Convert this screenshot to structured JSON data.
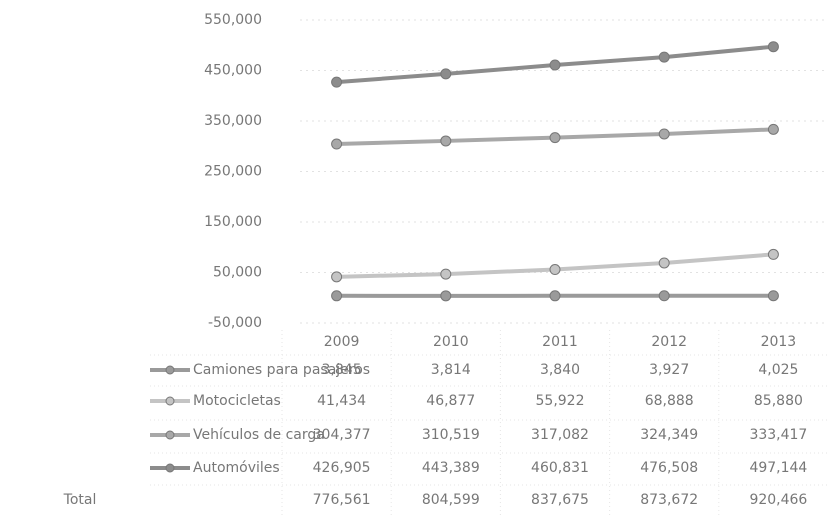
{
  "chart_data": {
    "type": "line",
    "categories": [
      "2009",
      "2010",
      "2011",
      "2012",
      "2013"
    ],
    "series": [
      {
        "name": "Camiones para pasajeros",
        "color": "#9a9a9a",
        "values": [
          3845,
          3814,
          3840,
          3927,
          4025
        ],
        "value_labels": [
          "3,845",
          "3,814",
          "3,840",
          "3,927",
          "4,025"
        ]
      },
      {
        "name": "Motocicletas",
        "color": "#c4c4c4",
        "values": [
          41434,
          46877,
          55922,
          68888,
          85880
        ],
        "value_labels": [
          "41,434",
          "46,877",
          "55,922",
          "68,888",
          "85,880"
        ]
      },
      {
        "name": "Vehículos de carga",
        "color": "#a8a8a8",
        "values": [
          304377,
          310519,
          317082,
          324349,
          333417
        ],
        "value_labels": [
          "304,377",
          "310,519",
          "317,082",
          "324,349",
          "333,417"
        ]
      },
      {
        "name": "Automóviles",
        "color": "#8c8c8c",
        "values": [
          426905,
          443389,
          460831,
          476508,
          497144
        ],
        "value_labels": [
          "426,905",
          "443,389",
          "460,831",
          "476,508",
          "497,144"
        ]
      }
    ],
    "total": {
      "name": "Total",
      "values": [
        776561,
        804599,
        837675,
        873672,
        920466
      ],
      "value_labels": [
        "776,561",
        "804,599",
        "837,675",
        "873,672",
        "920,466"
      ]
    },
    "ylim": [
      -50000,
      550000
    ],
    "yticks": [
      {
        "value": -50000,
        "label": "-50,000"
      },
      {
        "value": 50000,
        "label": "50,000"
      },
      {
        "value": 150000,
        "label": "150,000"
      },
      {
        "value": 250000,
        "label": "250,000"
      },
      {
        "value": 350000,
        "label": "350,000"
      },
      {
        "value": 450000,
        "label": "450,000"
      },
      {
        "value": 550000,
        "label": "550,000"
      }
    ],
    "grid": true
  }
}
